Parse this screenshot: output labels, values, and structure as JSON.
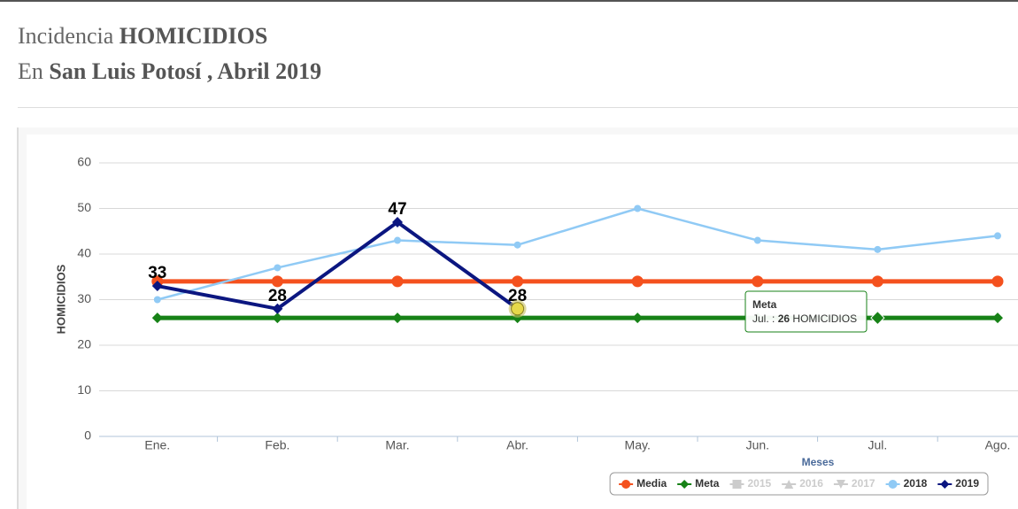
{
  "header": {
    "title": {
      "prefix": "Incidencia",
      "subject": "HOMICIDIOS"
    },
    "subtitle": {
      "prefix": "En",
      "place": "San Luis Potosí",
      "suffix": ", Abril 2019"
    }
  },
  "chart_data": {
    "type": "line",
    "categories": [
      "Ene.",
      "Feb.",
      "Mar.",
      "Abr.",
      "May.",
      "Jun.",
      "Jul.",
      "Ago."
    ],
    "x_label": "Meses",
    "y_label": "HOMICIDIOS",
    "ylim": [
      0,
      60
    ],
    "yticks": [
      0,
      10,
      20,
      30,
      40,
      50,
      60
    ],
    "grid": true,
    "legend": "bottom-right",
    "series": [
      {
        "name": "Media",
        "color": "#f4511e",
        "marker": "circle",
        "values": [
          34,
          34,
          34,
          34,
          34,
          34,
          34,
          34
        ]
      },
      {
        "name": "Meta",
        "color": "#178217",
        "marker": "diamond",
        "values": [
          26,
          26,
          26,
          26,
          26,
          26,
          26,
          26
        ]
      },
      {
        "name": "2015",
        "color": "#cccccc",
        "marker": "square",
        "hidden": true,
        "values": [
          null,
          null,
          null,
          null,
          null,
          null,
          null,
          null
        ]
      },
      {
        "name": "2016",
        "color": "#cccccc",
        "marker": "triangle",
        "hidden": true,
        "values": [
          null,
          null,
          null,
          null,
          null,
          null,
          null,
          null
        ]
      },
      {
        "name": "2017",
        "color": "#cccccc",
        "marker": "triangle-down",
        "hidden": true,
        "values": [
          null,
          null,
          null,
          null,
          null,
          null,
          null,
          null
        ]
      },
      {
        "name": "2018",
        "color": "#90caf5",
        "marker": "circle",
        "values": [
          30,
          37,
          43,
          42,
          50,
          43,
          41,
          44
        ]
      },
      {
        "name": "2019",
        "color": "#0b1680",
        "marker": "diamond",
        "data_labels": true,
        "values": [
          33,
          28,
          47,
          28,
          null,
          null,
          null,
          null
        ]
      }
    ],
    "tooltip": {
      "title": "Meta",
      "category": "Jul.",
      "separator": ":",
      "value": 26,
      "unit": "HOMICIDIOS"
    }
  }
}
